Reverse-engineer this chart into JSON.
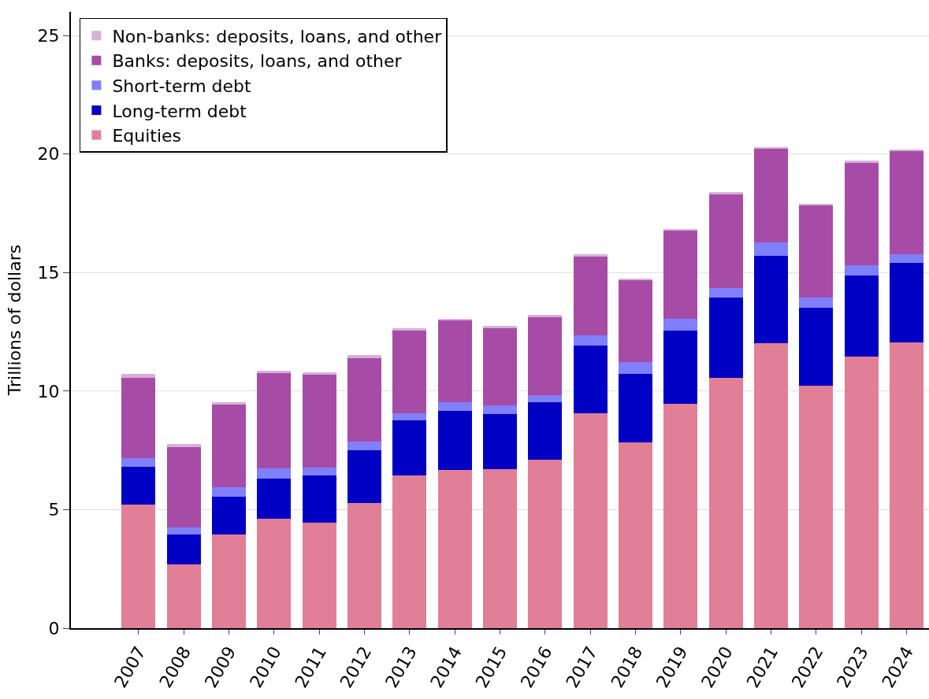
{
  "chart_data": {
    "type": "bar",
    "stacked": true,
    "ylabel": "Trillions of dollars",
    "categories": [
      "2007",
      "2008",
      "2009",
      "2010",
      "2011",
      "2012",
      "2013",
      "2014",
      "2015",
      "2016",
      "2017",
      "2018",
      "2019",
      "2020",
      "2021",
      "2022",
      "2023",
      "2024"
    ],
    "series": [
      {
        "name": "Equities",
        "color": "#e07f96",
        "values": [
          5.2,
          2.7,
          3.94,
          4.6,
          4.44,
          5.27,
          6.43,
          6.69,
          6.72,
          7.09,
          9.08,
          7.85,
          9.45,
          10.57,
          12.02,
          10.24,
          11.46,
          12.06
        ]
      },
      {
        "name": "Long-term debt",
        "color": "#0000c4",
        "values": [
          1.62,
          1.25,
          1.59,
          1.7,
          1.99,
          2.24,
          2.32,
          2.49,
          2.32,
          2.44,
          2.84,
          2.88,
          3.11,
          3.37,
          3.68,
          3.27,
          3.41,
          3.35
        ]
      },
      {
        "name": "Short-term debt",
        "color": "#8080ff",
        "values": [
          0.36,
          0.29,
          0.4,
          0.43,
          0.36,
          0.37,
          0.33,
          0.36,
          0.37,
          0.31,
          0.43,
          0.5,
          0.49,
          0.4,
          0.56,
          0.43,
          0.43,
          0.35
        ]
      },
      {
        "name": "Banks: deposits, loans, and other",
        "color": "#a64ca6",
        "values": [
          3.39,
          3.41,
          3.51,
          4.03,
          3.91,
          3.52,
          3.48,
          3.44,
          3.24,
          3.29,
          3.35,
          3.46,
          3.72,
          3.94,
          3.98,
          3.91,
          4.33,
          4.37
        ]
      },
      {
        "name": "Non-banks: deposits, loans, and other",
        "color": "#d8afd8",
        "values": [
          0.16,
          0.13,
          0.1,
          0.09,
          0.08,
          0.13,
          0.09,
          0.07,
          0.1,
          0.08,
          0.06,
          0.07,
          0.08,
          0.1,
          0.06,
          0.06,
          0.08,
          0.07
        ]
      }
    ],
    "ylim": [
      0,
      26
    ],
    "yticks": [
      0,
      5,
      10,
      15,
      20,
      25
    ],
    "grid": "y",
    "legend": "top left"
  }
}
